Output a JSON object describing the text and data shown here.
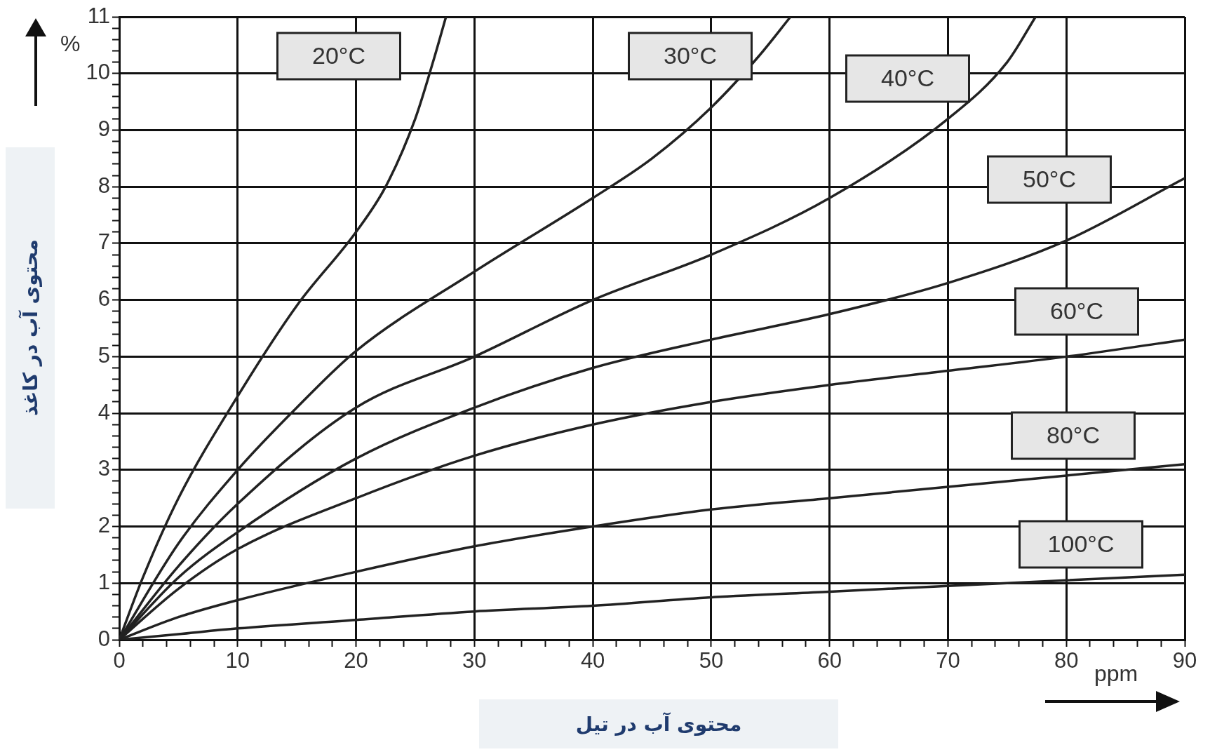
{
  "chart_data": {
    "type": "line",
    "xlabel": "محتوی آب در تیل",
    "ylabel": "محتوی آب در کاغذ",
    "xlim": [
      0,
      90
    ],
    "ylim": [
      0,
      11
    ],
    "xticks": [
      0,
      {
        "value": 2,
        "label": null
      },
      {
        "value": 4,
        "label": null
      },
      {
        "value": 6,
        "label": null
      },
      {
        "value": 8,
        "label": null
      },
      10,
      {
        "value": 12,
        "label": null
      },
      {
        "value": 14,
        "label": null
      },
      {
        "value": 16,
        "label": null
      },
      {
        "value": 18,
        "label": null
      },
      20,
      {
        "value": 22,
        "label": null
      },
      {
        "value": 24,
        "label": null
      },
      {
        "value": 26,
        "label": null
      },
      {
        "value": 28,
        "label": null
      },
      30,
      {
        "value": 32,
        "label": null
      },
      {
        "value": 34,
        "label": null
      },
      {
        "value": 36,
        "label": null
      },
      {
        "value": 38,
        "label": null
      },
      40,
      {
        "value": 42,
        "label": null
      },
      {
        "value": 44,
        "label": null
      },
      {
        "value": 46,
        "label": null
      },
      {
        "value": 48,
        "label": null
      },
      50,
      {
        "value": 52,
        "label": null
      },
      {
        "value": 54,
        "label": null
      },
      {
        "value": 56,
        "label": null
      },
      {
        "value": 58,
        "label": null
      },
      60,
      {
        "value": 62,
        "label": null
      },
      {
        "value": 64,
        "label": null
      },
      {
        "value": 66,
        "label": null
      },
      {
        "value": 68,
        "label": null
      },
      70,
      {
        "value": 72,
        "label": null
      },
      {
        "value": 74,
        "label": null
      },
      {
        "value": 76,
        "label": null
      },
      {
        "value": 78,
        "label": null
      },
      80,
      {
        "value": 82,
        "label": null
      },
      {
        "value": 84,
        "label": null
      },
      {
        "value": 86,
        "label": null
      },
      {
        "value": 88,
        "label": null
      },
      90
    ],
    "yticks": [
      0,
      {
        "value": 0.2,
        "label": null
      },
      {
        "value": 0.4,
        "label": null
      },
      {
        "value": 0.6,
        "label": null
      },
      {
        "value": 0.8,
        "label": null
      },
      1,
      {
        "value": 1.2,
        "label": null
      },
      {
        "value": 1.4,
        "label": null
      },
      {
        "value": 1.6,
        "label": null
      },
      {
        "value": 1.8,
        "label": null
      },
      2,
      {
        "value": 2.2,
        "label": null
      },
      {
        "value": 2.4,
        "label": null
      },
      {
        "value": 2.6,
        "label": null
      },
      {
        "value": 2.8,
        "label": null
      },
      3,
      {
        "value": 3.2,
        "label": null
      },
      {
        "value": 3.4,
        "label": null
      },
      {
        "value": 3.6,
        "label": null
      },
      {
        "value": 3.8,
        "label": null
      },
      4,
      {
        "value": 4.2,
        "label": null
      },
      {
        "value": 4.4,
        "label": null
      },
      {
        "value": 4.6,
        "label": null
      },
      {
        "value": 4.8,
        "label": null
      },
      5,
      {
        "value": 5.2,
        "label": null
      },
      {
        "value": 5.4,
        "label": null
      },
      {
        "value": 5.6,
        "label": null
      },
      {
        "value": 5.8,
        "label": null
      },
      6,
      {
        "value": 6.2,
        "label": null
      },
      {
        "value": 6.4,
        "label": null
      },
      {
        "value": 6.6,
        "label": null
      },
      {
        "value": 6.8,
        "label": null
      },
      7,
      {
        "value": 7.2,
        "label": null
      },
      {
        "value": 7.4,
        "label": null
      },
      {
        "value": 7.6,
        "label": null
      },
      {
        "value": 7.8,
        "label": null
      },
      8,
      {
        "value": 8.2,
        "label": null
      },
      {
        "value": 8.4,
        "label": null
      },
      {
        "value": 8.6,
        "label": null
      },
      {
        "value": 8.8,
        "label": null
      },
      9,
      {
        "value": 9.2,
        "label": null
      },
      {
        "value": 9.4,
        "label": null
      },
      {
        "value": 9.6,
        "label": null
      },
      {
        "value": 9.8,
        "label": null
      },
      10,
      {
        "value": 10.2,
        "label": null
      },
      {
        "value": 10.4,
        "label": null
      },
      {
        "value": 10.6,
        "label": null
      },
      {
        "value": 10.8,
        "label": null
      },
      11
    ],
    "grid": true,
    "legend": false,
    "marker": "none",
    "line_style": "solid",
    "series": [
      {
        "color": "#222222",
        "x": [
          0,
          2,
          5,
          10,
          15,
          20,
          22.5,
          25,
          26.5,
          27.6
        ],
        "values": [
          0,
          1.1,
          2.5,
          4.3,
          5.9,
          7.2,
          8.0,
          9.2,
          10.2,
          11
        ]
      },
      {
        "color": "#222222",
        "x": [
          0,
          5,
          10,
          15,
          20,
          30,
          40,
          45,
          50,
          54,
          56.7
        ],
        "values": [
          0,
          1.7,
          3.0,
          4.1,
          5.1,
          6.5,
          7.8,
          8.5,
          9.4,
          10.3,
          11
        ]
      },
      {
        "color": "#222222",
        "x": [
          0,
          5,
          10,
          20,
          30,
          40,
          50,
          60,
          70,
          75,
          77.4
        ],
        "values": [
          0,
          1.3,
          2.4,
          4.1,
          5.0,
          6.0,
          6.8,
          7.8,
          9.2,
          10.2,
          11
        ]
      },
      {
        "color": "#222222",
        "x": [
          0,
          5,
          10,
          20,
          30,
          40,
          50,
          60,
          70,
          80,
          90
        ],
        "values": [
          0,
          1.1,
          1.9,
          3.2,
          4.1,
          4.8,
          5.3,
          5.75,
          6.3,
          7.05,
          8.15
        ]
      },
      {
        "color": "#222222",
        "x": [
          0,
          5,
          10,
          20,
          30,
          40,
          50,
          60,
          70,
          80,
          90
        ],
        "values": [
          0,
          0.9,
          1.6,
          2.5,
          3.25,
          3.8,
          4.2,
          4.5,
          4.75,
          5.0,
          5.3
        ]
      },
      {
        "color": "#222222",
        "x": [
          0,
          5,
          10,
          20,
          30,
          40,
          50,
          60,
          70,
          80,
          90
        ],
        "values": [
          0,
          0.4,
          0.7,
          1.2,
          1.65,
          2.0,
          2.3,
          2.5,
          2.7,
          2.9,
          3.1
        ]
      },
      {
        "color": "#222222",
        "x": [
          0,
          5,
          10,
          20,
          30,
          40,
          50,
          60,
          70,
          80,
          90
        ],
        "values": [
          0,
          0.1,
          0.2,
          0.35,
          0.5,
          0.6,
          0.75,
          0.85,
          0.95,
          1.05,
          1.15
        ]
      }
    ],
    "annotations": [
      "20°C",
      "30°C",
      "40°C",
      "50°C",
      "60°C",
      "80°C",
      "100°C",
      "%",
      "ppm"
    ]
  }
}
